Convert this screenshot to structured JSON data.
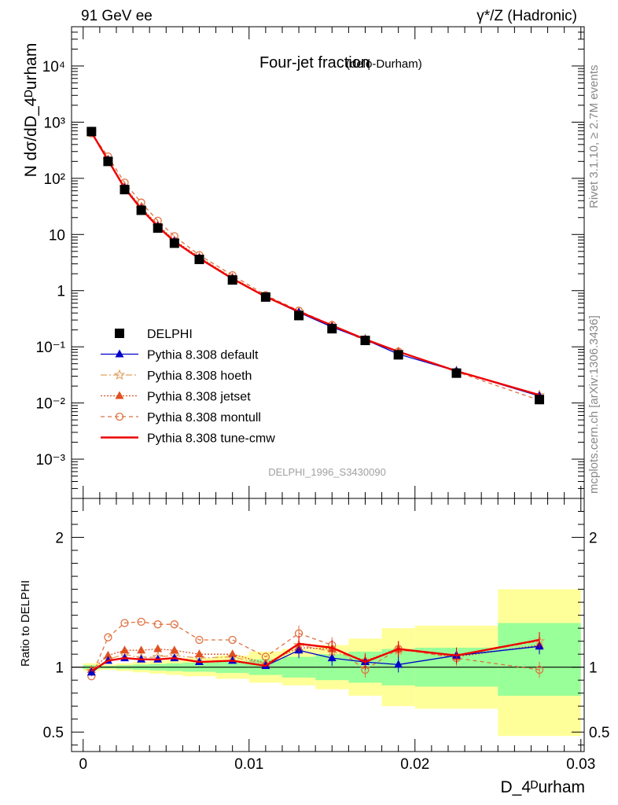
{
  "header": {
    "left": "91 GeV ee",
    "right_prefix": "γ*/Z (Hadronic)"
  },
  "side_labels": {
    "rivet": "Rivet 3.1.10, ≥ 2.7M events",
    "mcplots": "mcplots.cern.ch [arXiv:1306.3436]"
  },
  "colors": {
    "data": "#000000",
    "default": "#0000cc",
    "hoeth": "#e0a060",
    "jetset": "#e05020",
    "montull": "#e07040",
    "tunecmw": "#ee0000",
    "band_outer": "#ffff99",
    "band_inner": "#99ff99"
  },
  "chart_data": [
    {
      "type": "line",
      "title": "Four-jet fraction",
      "title_sub": "(delϕ-Durham)",
      "analysis_id": "DELPHI_1996_S3430090",
      "ylabel": "N dσ/dD_4ᴰurham",
      "yscale": "log",
      "ylim": [
        0.0002,
        50000
      ],
      "xlim": [
        -0.0007,
        0.0302
      ],
      "ytick_labels": [
        "10⁻³",
        "10⁻²",
        "10⁻¹",
        "1",
        "10",
        "10²",
        "10³",
        "10⁴"
      ],
      "legend_position": "lower-left",
      "x": [
        0.0005,
        0.0015,
        0.0025,
        0.0035,
        0.0045,
        0.0055,
        0.007,
        0.009,
        0.011,
        0.013,
        0.015,
        0.017,
        0.019,
        0.0225,
        0.0275
      ],
      "series": [
        {
          "name": "DELPHI",
          "style": "data",
          "values": [
            680,
            200,
            63,
            27,
            13,
            7.0,
            3.6,
            1.55,
            0.77,
            0.36,
            0.21,
            0.13,
            0.072,
            0.034,
            0.0115
          ]
        },
        {
          "name": "Pythia 8.308 default",
          "style": "default",
          "values": [
            650,
            210,
            67,
            28.5,
            13.8,
            7.5,
            3.75,
            1.63,
            0.78,
            0.41,
            0.225,
            0.135,
            0.074,
            0.037,
            0.0133
          ]
        },
        {
          "name": "Pythia 8.308 hoeth",
          "style": "hoeth",
          "values": [
            660,
            212,
            69,
            29,
            14,
            7.6,
            3.85,
            1.68,
            0.785,
            0.42,
            0.235,
            0.137,
            0.081,
            0.037,
            0.0138
          ]
        },
        {
          "name": "Pythia 8.308 jetset",
          "style": "jetset",
          "values": [
            670,
            218,
            71,
            30.5,
            14.8,
            7.9,
            3.95,
            1.7,
            0.79,
            0.41,
            0.24,
            0.136,
            0.082,
            0.037,
            0.0135
          ]
        },
        {
          "name": "Pythia 8.308 montull",
          "style": "montull",
          "values": [
            630,
            245,
            84,
            37,
            17.6,
            9.3,
            4.3,
            1.88,
            0.83,
            0.44,
            0.245,
            0.128,
            0.082,
            0.036,
            0.0112
          ]
        },
        {
          "name": "Pythia 8.308 tune-cmw",
          "style": "tunecmw",
          "values": [
            660,
            210,
            67,
            28.5,
            13.8,
            7.5,
            3.75,
            1.63,
            0.78,
            0.425,
            0.24,
            0.136,
            0.082,
            0.037,
            0.0139
          ]
        }
      ]
    },
    {
      "type": "line",
      "ylabel": "Ratio to DELPHI",
      "xlabel": "D_4ᴰurham",
      "ylim": [
        0.35,
        2.3
      ],
      "xlim": [
        -0.0007,
        0.0302
      ],
      "ytick_labels": [
        "0.5",
        "1",
        "2"
      ],
      "xtick_labels": [
        "0",
        "0.01",
        "0.02",
        "0.03"
      ],
      "bin_edges": [
        0,
        0.001,
        0.002,
        0.003,
        0.004,
        0.005,
        0.006,
        0.008,
        0.01,
        0.012,
        0.014,
        0.016,
        0.018,
        0.02,
        0.025,
        0.03
      ],
      "band_outer": [
        [
          0.97,
          1.03
        ],
        [
          0.98,
          1.02
        ],
        [
          0.97,
          1.03
        ],
        [
          0.96,
          1.04
        ],
        [
          0.95,
          1.05
        ],
        [
          0.94,
          1.06
        ],
        [
          0.93,
          1.07
        ],
        [
          0.91,
          1.09
        ],
        [
          0.88,
          1.12
        ],
        [
          0.86,
          1.14
        ],
        [
          0.83,
          1.17
        ],
        [
          0.78,
          1.22
        ],
        [
          0.7,
          1.3
        ],
        [
          0.68,
          1.32
        ],
        [
          0.47,
          1.6
        ]
      ],
      "band_inner": [
        [
          0.985,
          1.015
        ],
        [
          0.99,
          1.01
        ],
        [
          0.985,
          1.015
        ],
        [
          0.98,
          1.02
        ],
        [
          0.975,
          1.025
        ],
        [
          0.97,
          1.03
        ],
        [
          0.965,
          1.035
        ],
        [
          0.955,
          1.045
        ],
        [
          0.94,
          1.06
        ],
        [
          0.92,
          1.08
        ],
        [
          0.9,
          1.1
        ],
        [
          0.88,
          1.12
        ],
        [
          0.86,
          1.14
        ],
        [
          0.85,
          1.15
        ],
        [
          0.78,
          1.34
        ]
      ],
      "series": [
        {
          "name": "Pythia 8.308 default",
          "style": "default",
          "values": [
            0.96,
            1.05,
            1.07,
            1.06,
            1.06,
            1.07,
            1.04,
            1.05,
            1.01,
            1.13,
            1.07,
            1.04,
            1.02,
            1.09,
            1.16
          ]
        },
        {
          "name": "Pythia 8.308 hoeth",
          "style": "hoeth",
          "values": [
            0.97,
            1.06,
            1.1,
            1.07,
            1.08,
            1.09,
            1.07,
            1.08,
            1.02,
            1.17,
            1.12,
            1.05,
            1.13,
            1.09,
            1.2
          ]
        },
        {
          "name": "Pythia 8.308 jetset",
          "style": "jetset",
          "values": [
            0.98,
            1.09,
            1.13,
            1.13,
            1.14,
            1.13,
            1.1,
            1.1,
            1.03,
            1.15,
            1.14,
            1.05,
            1.14,
            1.08,
            1.17
          ]
        },
        {
          "name": "Pythia 8.308 montull",
          "style": "montull",
          "values": [
            0.93,
            1.23,
            1.34,
            1.35,
            1.33,
            1.33,
            1.21,
            1.21,
            1.08,
            1.26,
            1.17,
            0.98,
            1.14,
            1.07,
            0.98
          ]
        },
        {
          "name": "Pythia 8.308 tune-cmw",
          "style": "tunecmw",
          "values": [
            0.97,
            1.05,
            1.07,
            1.06,
            1.06,
            1.07,
            1.04,
            1.05,
            1.01,
            1.18,
            1.15,
            1.04,
            1.14,
            1.09,
            1.21
          ]
        }
      ]
    }
  ]
}
